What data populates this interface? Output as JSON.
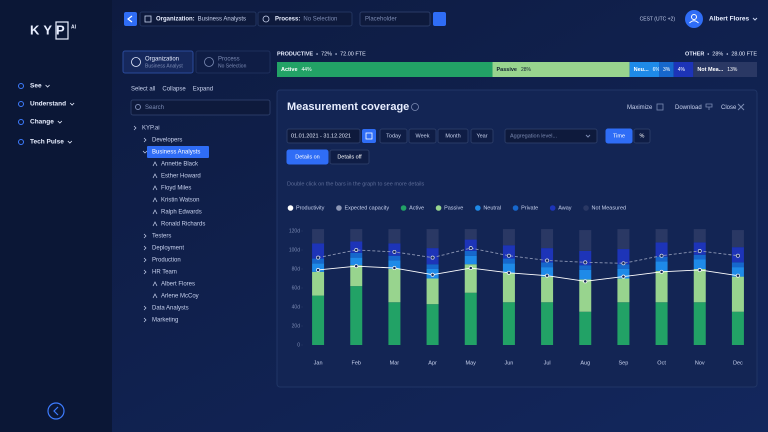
{
  "sidebar": {
    "logo": "KYP",
    "logo_suffix": "AI",
    "nav": [
      "See",
      "Understand",
      "Change",
      "Tech Pulse"
    ]
  },
  "topbar": {
    "org_label": "Organization:",
    "org_value": "Business Analysts",
    "process_label": "Process:",
    "process_value": "No Selection",
    "placeholder": "Placeholder",
    "timezone": "CEST (UTC +2)",
    "user": "Albert Flores"
  },
  "tree": {
    "tabs": [
      {
        "title": "Organization",
        "subtitle": "Business Analyst"
      },
      {
        "title": "Process",
        "subtitle": "No Selection"
      }
    ],
    "actions": [
      "Select all",
      "Collapse",
      "Expand"
    ],
    "search": "Search",
    "items": [
      {
        "label": "KYP.ai",
        "level": 0
      },
      {
        "label": "Developers",
        "level": 1
      },
      {
        "label": "Business Analysts",
        "level": 1,
        "selected": true
      },
      {
        "label": "Annette Black",
        "level": 2
      },
      {
        "label": "Esther Howard",
        "level": 2
      },
      {
        "label": "Floyd Miles",
        "level": 2
      },
      {
        "label": "Kristin Watson",
        "level": 2
      },
      {
        "label": "Ralph Edwards",
        "level": 2
      },
      {
        "label": "Ronald Richards",
        "level": 2
      },
      {
        "label": "Testers",
        "level": 1
      },
      {
        "label": "Deployment",
        "level": 1
      },
      {
        "label": "Production",
        "level": 1
      },
      {
        "label": "HR Team",
        "level": 1
      },
      {
        "label": "Albert Flores",
        "level": 2
      },
      {
        "label": "Arlene McCoy",
        "level": 2
      },
      {
        "label": "Data Analysts",
        "level": 1
      },
      {
        "label": "Marketing",
        "level": 1
      }
    ]
  },
  "summary": {
    "productive": {
      "label": "PRODUCTIVE",
      "percent": "72%",
      "fte": "72.00 FTE"
    },
    "other": {
      "label": "OTHER",
      "percent": "28%",
      "fte": "28.00 FTE"
    },
    "segments": [
      {
        "name": "Active",
        "value": 44,
        "value_label": "44%",
        "color": "#22a266"
      },
      {
        "name": "Passive",
        "value": 28,
        "value_label": "28%",
        "color": "#98d48e"
      },
      {
        "name": "Neu...",
        "value": 6,
        "value_label": "6%",
        "color": "#1e8ae8"
      },
      {
        "value": 3,
        "value_label": "3%",
        "color": "#1667cc"
      },
      {
        "value": 4,
        "value_label": "4%",
        "color": "#1d34b8"
      },
      {
        "name": "Not Mea...",
        "value": 13,
        "value_label": "13%",
        "color": "#2a3864"
      }
    ]
  },
  "card": {
    "title": "Measurement coverage",
    "actions": [
      "Maximize",
      "Download",
      "Close"
    ],
    "date_range": "01.01.2021 - 31.12.2021",
    "periods": [
      "Today",
      "Week",
      "Month",
      "Year"
    ],
    "aggregation": "Aggregation level...",
    "modes": [
      "Time",
      "%"
    ],
    "details": [
      "Details on",
      "Details off"
    ],
    "hint": "Double click on the bars in the graph to see more details"
  },
  "chart_data": {
    "type": "stacked_bar_line",
    "categories": [
      "Jan",
      "Feb",
      "Mar",
      "Apr",
      "May",
      "Jun",
      "Jul",
      "Aug",
      "Sep",
      "Oct",
      "Nov",
      "Dec"
    ],
    "series": [
      {
        "name": "Productivity",
        "kind": "line",
        "color": "#ffffff",
        "values": [
          79,
          83,
          81,
          74,
          81,
          76,
          73,
          67,
          72,
          77,
          79,
          73
        ]
      },
      {
        "name": "Expected capacity",
        "kind": "line",
        "dashed": true,
        "color": "#8d97b5",
        "values": [
          92,
          100,
          98,
          92,
          102,
          94,
          89,
          87,
          86,
          94,
          99,
          94
        ]
      },
      {
        "name": "Active",
        "kind": "bar",
        "color": "#22a266",
        "values": [
          52,
          62,
          45,
          43,
          55,
          45,
          45,
          35,
          45,
          45,
          45,
          35
        ]
      },
      {
        "name": "Passive",
        "kind": "bar",
        "color": "#98d48e",
        "values": [
          25,
          22,
          35,
          27,
          30,
          31,
          27,
          34,
          25,
          33,
          35,
          37
        ]
      },
      {
        "name": "Neutral",
        "kind": "bar",
        "color": "#1e8ae8",
        "values": [
          9,
          8,
          9,
          10,
          9,
          10,
          10,
          10,
          10,
          10,
          10,
          10
        ]
      },
      {
        "name": "Private",
        "kind": "bar",
        "color": "#1667cc",
        "values": [
          5,
          5,
          5,
          5,
          5,
          5,
          5,
          5,
          5,
          5,
          5,
          5
        ]
      },
      {
        "name": "Away",
        "kind": "bar",
        "color": "#1d34b8",
        "values": [
          16,
          12,
          13,
          17,
          12,
          14,
          15,
          15,
          16,
          15,
          13,
          16
        ]
      },
      {
        "name": "Not Measured",
        "kind": "bar",
        "color": "#2a3864",
        "values": [
          15,
          13,
          15,
          20,
          11,
          17,
          20,
          22,
          21,
          14,
          14,
          18
        ]
      }
    ],
    "ylim": [
      0,
      125
    ],
    "yticks": [
      0,
      {
        "value": 20,
        "label": "20d"
      },
      {
        "value": 40,
        "label": "40d"
      },
      {
        "value": 60,
        "label": "60d"
      },
      {
        "value": 80,
        "label": "80d"
      },
      {
        "value": 100,
        "label": "100d"
      },
      {
        "value": 120,
        "label": "120d"
      }
    ]
  }
}
